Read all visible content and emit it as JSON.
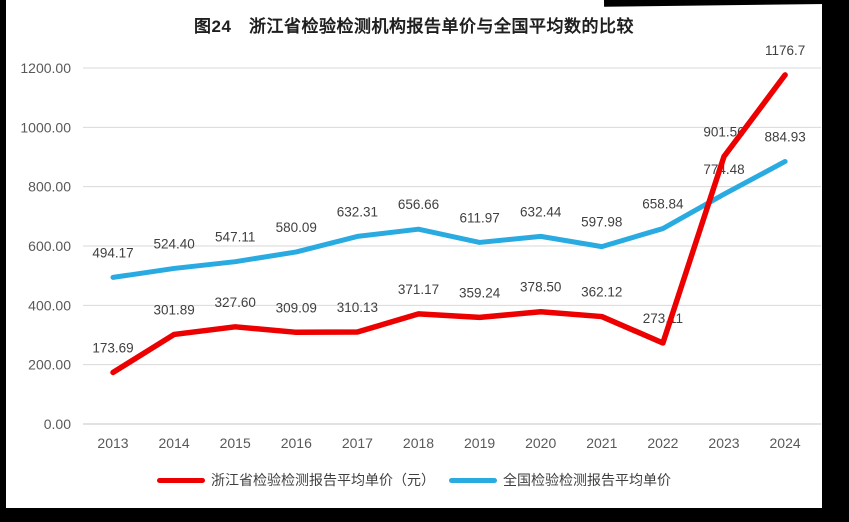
{
  "page": {
    "title": "图24　浙江省检验检测机构报告单价与全国平均数的比较"
  },
  "chart_data": {
    "type": "line",
    "title": "图24　浙江省检验检测机构报告单价与全国平均数的比较",
    "categories": [
      "2013",
      "2014",
      "2015",
      "2016",
      "2017",
      "2018",
      "2019",
      "2020",
      "2021",
      "2022",
      "2023",
      "2024"
    ],
    "series": [
      {
        "name": "浙江省检验检测报告平均单价（元）",
        "color": "#ec0000",
        "line_width": 5.5,
        "values": [
          173.69,
          301.89,
          327.6,
          309.09,
          310.13,
          371.17,
          359.24,
          378.5,
          362.12,
          273.11,
          901.56,
          1176.7
        ],
        "labels": [
          "173.69",
          "301.89",
          "327.60",
          "309.09",
          "310.13",
          "371.17",
          "359.24",
          "378.50",
          "362.12",
          "273.11",
          "901.56",
          "1176.7"
        ]
      },
      {
        "name": "全国检验检测报告平均单价",
        "color": "#29abe2",
        "line_width": 5,
        "values": [
          494.17,
          524.4,
          547.11,
          580.09,
          632.31,
          656.66,
          611.97,
          632.44,
          597.98,
          658.84,
          774.48,
          884.93
        ],
        "labels": [
          "494.17",
          "524.40",
          "547.11",
          "580.09",
          "632.31",
          "656.66",
          "611.97",
          "632.44",
          "597.98",
          "658.84",
          "774.48",
          "884.93"
        ]
      }
    ],
    "ylim": [
      0,
      1200
    ],
    "ytick_step": 200,
    "ytick_labels": [
      "0.00",
      "200.00",
      "400.00",
      "600.00",
      "800.00",
      "1000.00",
      "1200.00"
    ],
    "grid": true,
    "legend_position": "bottom",
    "xlabel": "",
    "ylabel": ""
  }
}
